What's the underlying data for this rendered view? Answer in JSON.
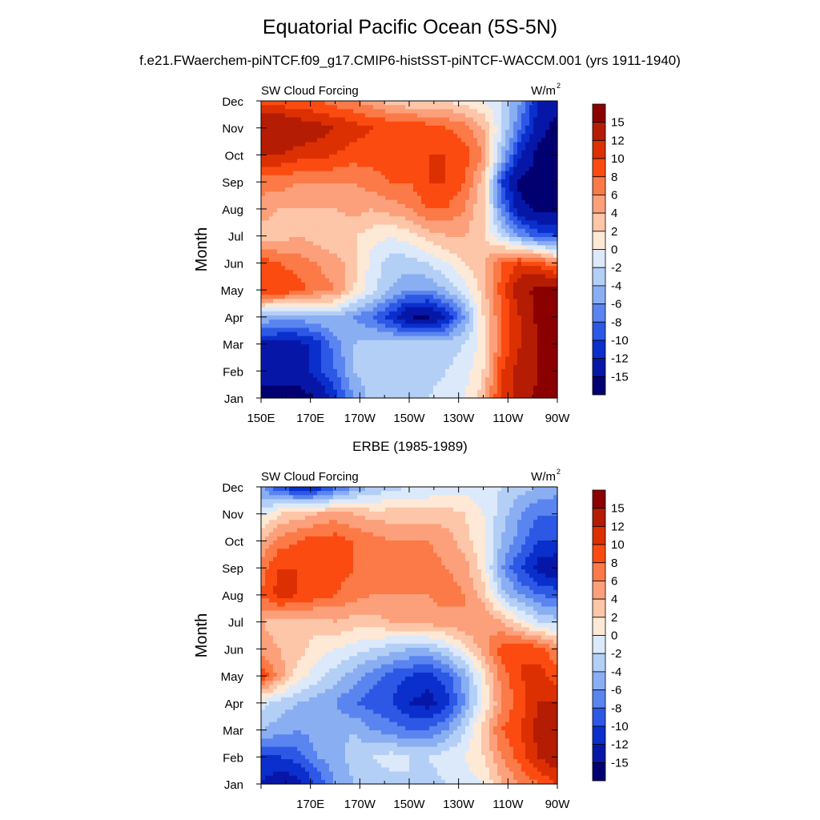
{
  "title": "Equatorial Pacific Ocean (5S-5N)",
  "subtitle": "f.e21.FWaerchem-piNTCF.f09_g17.CMIP6-histSST-piNTCF-WACCM.001 (yrs 1911-1940)",
  "bottom_panel_title": "ERBE (1985-1989)",
  "chart_data": [
    {
      "type": "heatmap",
      "name": "model",
      "variable_label": "SW Cloud Forcing",
      "units_label": "W/m",
      "units_sup": "2",
      "ylabel": "Month",
      "x_ticks": [
        "150E",
        "170E",
        "170W",
        "150W",
        "130W",
        "110W",
        "90W"
      ],
      "x_range": [
        150,
        270
      ],
      "months": [
        "Jan",
        "Feb",
        "Mar",
        "Apr",
        "May",
        "Jun",
        "Jul",
        "Aug",
        "Sep",
        "Oct",
        "Nov",
        "Dec"
      ],
      "colorbar_labels": [
        "15",
        "12",
        "10",
        "8",
        "6",
        "4",
        "2",
        "0",
        "-2",
        "-4",
        "-6",
        "-8",
        "-10",
        "-12",
        "-15"
      ],
      "colors": [
        "#8b0000",
        "#b41c03",
        "#dc3003",
        "#fb4b10",
        "#fb7a47",
        "#fca07b",
        "#fdc6a9",
        "#fee9d6",
        "#dce9fa",
        "#b4cff6",
        "#8aaef2",
        "#5a85f0",
        "#2d58e6",
        "#0a2fcc",
        "#0617a8",
        "#020071"
      ],
      "grid": [
        [
          -16,
          -16,
          -16,
          -15,
          -11,
          -6,
          -3,
          -2,
          -3,
          -2,
          -1,
          0,
          3,
          11,
          13,
          16,
          17
        ],
        [
          -14,
          -14,
          -14,
          -11,
          -8,
          -4,
          -3,
          -4,
          -3,
          -3,
          -2,
          -1,
          2,
          10,
          13,
          15,
          16
        ],
        [
          -13,
          -13,
          -13,
          -11,
          -7,
          -4,
          -3,
          -3,
          -3,
          -3,
          -3,
          -2,
          1,
          8,
          12,
          15,
          16
        ],
        [
          -4,
          -5,
          -5,
          -4,
          -4,
          -6,
          -8,
          -11,
          -15,
          -16,
          -12,
          -6,
          2,
          8,
          12,
          16,
          17
        ],
        [
          10,
          10,
          9,
          7,
          6,
          2,
          -1,
          -4,
          -6,
          -6,
          -4,
          -1,
          3,
          9,
          14,
          16,
          17
        ],
        [
          9,
          8,
          7,
          6,
          5,
          3,
          -1,
          -3,
          -3,
          -2,
          0,
          2,
          4,
          8,
          10,
          9,
          6
        ],
        [
          3,
          3,
          4,
          3,
          2,
          2,
          1,
          0,
          1,
          3,
          4,
          4,
          2,
          -2,
          -6,
          -9,
          -10
        ],
        [
          5,
          4,
          4,
          4,
          4,
          5,
          4,
          5,
          6,
          8,
          8,
          6,
          2,
          -7,
          -14,
          -16,
          -16
        ],
        [
          7,
          7,
          6,
          6,
          6,
          6,
          7,
          8,
          8,
          10,
          10,
          8,
          3,
          -10,
          -16,
          -16,
          -16
        ],
        [
          12,
          12,
          11,
          11,
          10,
          9,
          9,
          9,
          9,
          10,
          10,
          9,
          6,
          -4,
          -12,
          -16,
          -16
        ],
        [
          15,
          15,
          14,
          13,
          12,
          11,
          10,
          10,
          10,
          9,
          8,
          7,
          4,
          -2,
          -8,
          -14,
          -16
        ],
        [
          9,
          9,
          8,
          8,
          7,
          6,
          5,
          3,
          2,
          2,
          2,
          1,
          0,
          -2,
          -6,
          -12,
          -14
        ]
      ]
    },
    {
      "type": "heatmap",
      "name": "ERBE",
      "variable_label": "SW Cloud Forcing",
      "units_label": "W/m",
      "units_sup": "2",
      "ylabel": "Month",
      "x_ticks": [
        "",
        "170E",
        "170W",
        "150W",
        "130W",
        "110W",
        "90W"
      ],
      "x_range": [
        150,
        270
      ],
      "months": [
        "Jan",
        "Feb",
        "Mar",
        "Apr",
        "May",
        "Jun",
        "Jul",
        "Aug",
        "Sep",
        "Oct",
        "Nov",
        "Dec"
      ],
      "colorbar_labels": [
        "15",
        "12",
        "10",
        "8",
        "6",
        "4",
        "2",
        "0",
        "-2",
        "-4",
        "-6",
        "-8",
        "-10",
        "-12",
        "-15"
      ],
      "colors": [
        "#8b0000",
        "#b41c03",
        "#dc3003",
        "#fb4b10",
        "#fb7a47",
        "#fca07b",
        "#fdc6a9",
        "#fee9d6",
        "#dce9fa",
        "#b4cff6",
        "#8aaef2",
        "#5a85f0",
        "#2d58e6",
        "#0a2fcc",
        "#0617a8",
        "#020071"
      ],
      "grid": [
        [
          -12,
          -14,
          -13,
          -10,
          -6,
          -4,
          -3,
          -3,
          -2,
          -3,
          -2,
          -1,
          0,
          4,
          6,
          8,
          10
        ],
        [
          -10,
          -10,
          -9,
          -6,
          -5,
          -3,
          -2,
          -1,
          -2,
          -2,
          -1,
          0,
          2,
          6,
          9,
          12,
          14
        ],
        [
          -4,
          -5,
          -6,
          -5,
          -5,
          -4,
          -6,
          -7,
          -8,
          -8,
          -6,
          -2,
          3,
          8,
          10,
          13,
          15
        ],
        [
          -1,
          -3,
          -4,
          -5,
          -6,
          -8,
          -9,
          -10,
          -12,
          -13,
          -11,
          -6,
          0,
          6,
          9,
          12,
          12
        ],
        [
          10,
          5,
          1,
          -1,
          -3,
          -5,
          -7,
          -9,
          -10,
          -11,
          -9,
          -5,
          1,
          7,
          10,
          11,
          9
        ],
        [
          5,
          4,
          3,
          1,
          0,
          -1,
          -2,
          -3,
          -4,
          -4,
          -2,
          1,
          5,
          9,
          10,
          9,
          6
        ],
        [
          4,
          3,
          3,
          3,
          4,
          3,
          3,
          4,
          5,
          5,
          5,
          6,
          6,
          4,
          1,
          -2,
          -3
        ],
        [
          8,
          11,
          10,
          9,
          8,
          7,
          6,
          6,
          6,
          6,
          7,
          6,
          3,
          -3,
          -6,
          -8,
          -9
        ],
        [
          7,
          10,
          10,
          10,
          9,
          8,
          8,
          7,
          6,
          7,
          6,
          5,
          1,
          -6,
          -10,
          -13,
          -14
        ],
        [
          4,
          7,
          8,
          9,
          9,
          8,
          7,
          6,
          6,
          6,
          5,
          3,
          0,
          -4,
          -7,
          -10,
          -10
        ],
        [
          -1,
          2,
          3,
          4,
          5,
          4,
          3,
          3,
          3,
          3,
          3,
          2,
          0,
          -3,
          -6,
          -8,
          -8
        ],
        [
          -6,
          -10,
          -12,
          -12,
          -9,
          -6,
          -4,
          -3,
          -2,
          -2,
          -1,
          -1,
          -1,
          -2,
          -3,
          -4,
          -5
        ]
      ]
    }
  ]
}
